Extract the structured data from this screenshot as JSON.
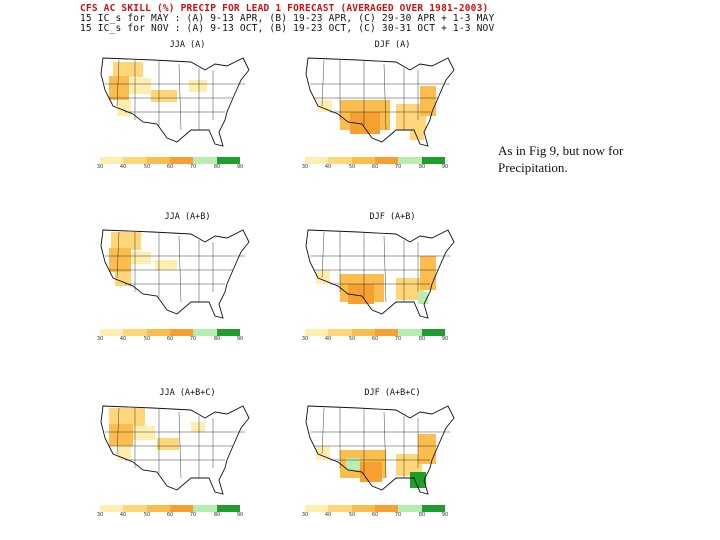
{
  "header": {
    "line1": "CFS AC SKILL (%) PRECIP FOR LEAD 1 FORECAST (AVERAGED OVER 1981-2003)",
    "line2": "15 IC_s for MAY : (A) 9-13 APR, (B) 19-23 APR, (C) 29-30 APR + 1-3 MAY",
    "line3": "15 IC_s for NOV : (A) 9-13 OCT, (B) 19-23 OCT, (C) 30-31 OCT + 1-3 NOV"
  },
  "caption": "As in Fig 9, but now for Precipitation.",
  "legend": {
    "colors": [
      "#ffeeb0",
      "#ffd77a",
      "#fbbd4e",
      "#f5a030",
      "#b9ecb0",
      "#1e9e2a"
    ]
  },
  "panels": [
    {
      "title": "JJA (A)",
      "ticks": [
        "30",
        "40",
        "50",
        "60",
        "70",
        "80",
        "90"
      ]
    },
    {
      "title": "DJF (A)",
      "ticks": [
        "30",
        "40",
        "50",
        "60",
        "70",
        "80",
        "90"
      ]
    },
    {
      "title": "JJA (A+B)",
      "ticks": [
        "30",
        "40",
        "50",
        "60",
        "70",
        "80",
        "90"
      ]
    },
    {
      "title": "DJF (A+B)",
      "ticks": [
        "30",
        "40",
        "50",
        "60",
        "70",
        "80",
        "90"
      ]
    },
    {
      "title": "JJA (A+B+C)",
      "ticks": [
        "30",
        "40",
        "50",
        "60",
        "70",
        "80",
        "90"
      ]
    },
    {
      "title": "DJF (A+B+C)",
      "ticks": [
        "30",
        "40",
        "50",
        "60",
        "70",
        "80",
        "90"
      ]
    }
  ]
}
